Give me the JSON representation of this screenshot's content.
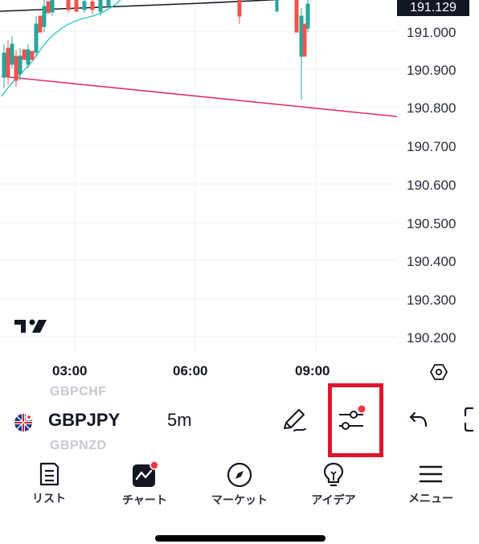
{
  "chart": {
    "symbol": "GBPJPY",
    "interval": "5m",
    "current_price": "191.129",
    "price_axis": [
      "191.000",
      "190.900",
      "190.800",
      "190.700",
      "190.600",
      "190.500",
      "190.400",
      "190.300",
      "190.200"
    ],
    "time_axis": [
      "03:00",
      "06:00",
      "09:00"
    ],
    "colors": {
      "up": "#26a69a",
      "down": "#ef5350",
      "trendline": "#e0306a",
      "ma": "#2fc6c6"
    }
  },
  "symbol_bar": {
    "prev_symbol": "GBPCHF",
    "next_symbol": "GBPNZD",
    "symbol": "GBPJPY",
    "interval": "5m"
  },
  "nav": {
    "items": [
      {
        "label": "リスト",
        "icon": "list-icon"
      },
      {
        "label": "チャート",
        "icon": "chart-icon"
      },
      {
        "label": "マーケット",
        "icon": "compass-icon"
      },
      {
        "label": "アイデア",
        "icon": "lightbulb-icon"
      },
      {
        "label": "メニュー",
        "icon": "menu-icon"
      }
    ]
  },
  "colors": {
    "highlight": "#e0142a",
    "notification": "#f23645"
  }
}
